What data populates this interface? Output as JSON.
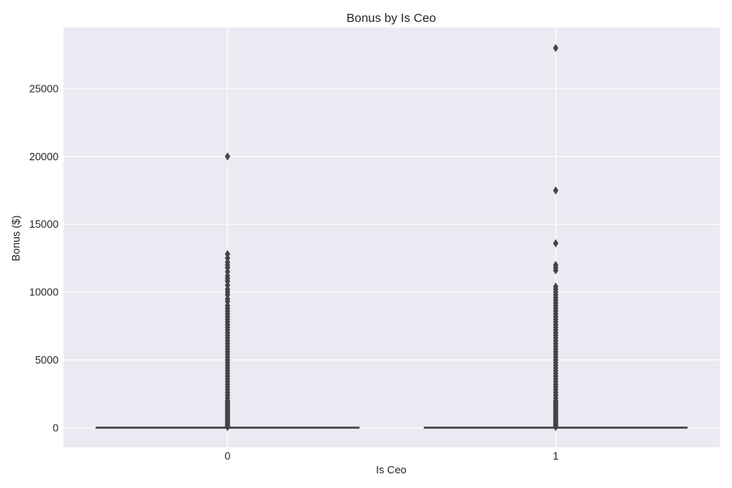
{
  "chart_data": {
    "type": "box",
    "title": "Bonus by Is Ceo",
    "xlabel": "Is Ceo",
    "ylabel": "Bonus ($)",
    "categories": [
      "0",
      "1"
    ],
    "ylim": [
      -1450,
      29500
    ],
    "yticks": [
      0,
      5000,
      10000,
      15000,
      20000,
      25000
    ],
    "grid": true,
    "colors": {
      "background": "#eaeaf2",
      "grid": "#ffffff",
      "box": "#444444",
      "text": "#262626"
    },
    "boxes": [
      {
        "category": "0",
        "whisker_low": 0,
        "q1": 0,
        "median": 0,
        "q3": 0,
        "whisker_high": 0,
        "outliers": [
          20000,
          12800,
          12500,
          12200,
          12000,
          11800,
          11500,
          11200,
          11000,
          10800,
          10500,
          10200,
          10000,
          9800,
          9500,
          9300,
          9000,
          8800,
          8600,
          8400,
          8200,
          8000,
          7800,
          7600,
          7400,
          7200,
          7000,
          6800,
          6600,
          6400,
          6200,
          6000,
          5800,
          5600,
          5400,
          5200,
          5000,
          4800,
          4600,
          4400,
          4200,
          4000,
          3800,
          3600,
          3400,
          3200,
          3000,
          2800,
          2600,
          2400,
          2200,
          2000,
          1900,
          1800,
          1700,
          1600,
          1500,
          1400,
          1300,
          1200,
          1100,
          1000,
          900,
          800,
          700,
          600,
          500,
          400,
          300,
          200,
          100,
          50
        ]
      },
      {
        "category": "1",
        "whisker_low": 0,
        "q1": 0,
        "median": 0,
        "q3": 0,
        "whisker_high": 0,
        "outliers": [
          28000,
          17500,
          13600,
          12000,
          11800,
          11600,
          10400,
          10200,
          10000,
          9800,
          9600,
          9400,
          9200,
          9000,
          8800,
          8600,
          8400,
          8200,
          8000,
          7800,
          7600,
          7400,
          7200,
          7000,
          6800,
          6600,
          6400,
          6200,
          6000,
          5800,
          5600,
          5400,
          5200,
          5000,
          4800,
          4600,
          4400,
          4200,
          4000,
          3800,
          3600,
          3400,
          3200,
          3000,
          2800,
          2600,
          2400,
          2200,
          2000,
          1900,
          1800,
          1700,
          1600,
          1500,
          1400,
          1300,
          1200,
          1100,
          1000,
          900,
          800,
          700,
          600,
          500,
          400,
          300,
          200,
          100,
          50
        ]
      }
    ]
  }
}
